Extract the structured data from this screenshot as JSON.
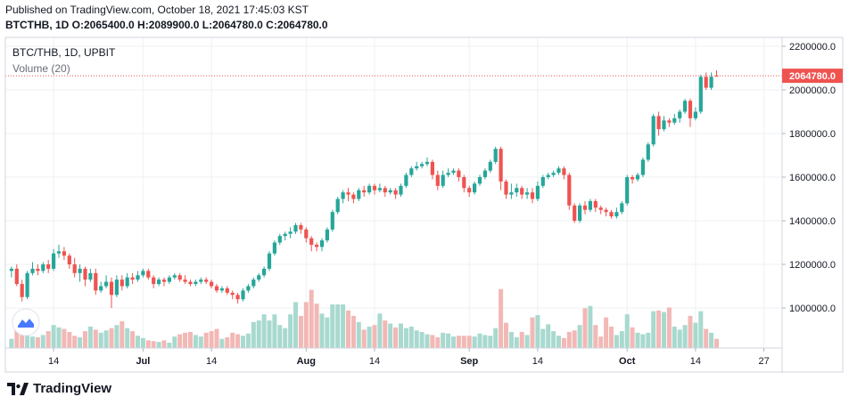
{
  "header": {
    "published": "Published on TradingView.com, October 18, 2021 17:45:03 KST",
    "ohlc": "BTCTHB, 1D O:2065400.0 H:2089900.0 L:2064780.0 C:2064780.0"
  },
  "legend": {
    "symbol": "BTC/THB, 1D, UPBIT",
    "volume": "Volume (20)"
  },
  "footer": {
    "brand": "TradingView"
  },
  "colors": {
    "up": "#26a69a",
    "down": "#ef5350",
    "up_vol": "#a8d9cf",
    "down_vol": "#f2b8b5",
    "last_price": "#ef5350",
    "grid": "#eef0f3"
  },
  "chart_data": {
    "type": "candlestick",
    "title": "BTC/THB, 1D, UPBIT",
    "last_price": 2064780.0,
    "last_price_label": "2064780.0",
    "y_range": [
      840000,
      2230000
    ],
    "y_ticks": [
      {
        "value": 1000000,
        "label": "1000000.0"
      },
      {
        "value": 1200000,
        "label": "1200000.0"
      },
      {
        "value": 1400000,
        "label": "1400000.0"
      },
      {
        "value": 1600000,
        "label": "1600000.0"
      },
      {
        "value": 1800000,
        "label": "1800000.0"
      },
      {
        "value": 2000000,
        "label": "2000000.0"
      },
      {
        "value": 2200000,
        "label": "2200000.0"
      }
    ],
    "x_ticks": [
      {
        "index": 9,
        "label": "14",
        "bold": false
      },
      {
        "index": 26,
        "label": "Jul",
        "bold": true
      },
      {
        "index": 39,
        "label": "14",
        "bold": false
      },
      {
        "index": 57,
        "label": "Aug",
        "bold": true
      },
      {
        "index": 70,
        "label": "14",
        "bold": false
      },
      {
        "index": 88,
        "label": "Sep",
        "bold": true
      },
      {
        "index": 101,
        "label": "14",
        "bold": false
      },
      {
        "index": 118,
        "label": "Oct",
        "bold": true
      },
      {
        "index": 131,
        "label": "14",
        "bold": false
      },
      {
        "index": 144,
        "label": "27",
        "bold": false
      }
    ],
    "first_index": 1,
    "candles": [
      [
        1170000,
        1180000,
        1140000,
        1190000
      ],
      [
        1180000,
        1110000,
        1100000,
        1200000
      ],
      [
        1110000,
        1050000,
        1030000,
        1130000
      ],
      [
        1050000,
        1160000,
        1040000,
        1170000
      ],
      [
        1160000,
        1180000,
        1150000,
        1210000
      ],
      [
        1180000,
        1170000,
        1150000,
        1200000
      ],
      [
        1170000,
        1200000,
        1160000,
        1210000
      ],
      [
        1200000,
        1180000,
        1160000,
        1220000
      ],
      [
        1180000,
        1250000,
        1170000,
        1270000
      ],
      [
        1250000,
        1260000,
        1230000,
        1290000
      ],
      [
        1260000,
        1240000,
        1220000,
        1280000
      ],
      [
        1240000,
        1200000,
        1180000,
        1250000
      ],
      [
        1200000,
        1160000,
        1140000,
        1230000
      ],
      [
        1160000,
        1180000,
        1120000,
        1200000
      ],
      [
        1180000,
        1130000,
        1100000,
        1190000
      ],
      [
        1130000,
        1160000,
        1120000,
        1180000
      ],
      [
        1160000,
        1080000,
        1060000,
        1180000
      ],
      [
        1080000,
        1100000,
        1070000,
        1120000
      ],
      [
        1100000,
        1120000,
        1090000,
        1150000
      ],
      [
        1120000,
        1060000,
        1000000,
        1140000
      ],
      [
        1060000,
        1130000,
        1050000,
        1150000
      ],
      [
        1130000,
        1100000,
        1080000,
        1150000
      ],
      [
        1100000,
        1140000,
        1090000,
        1160000
      ],
      [
        1140000,
        1130000,
        1110000,
        1160000
      ],
      [
        1130000,
        1150000,
        1120000,
        1170000
      ],
      [
        1150000,
        1170000,
        1140000,
        1180000
      ],
      [
        1170000,
        1140000,
        1130000,
        1180000
      ],
      [
        1140000,
        1110000,
        1090000,
        1150000
      ],
      [
        1110000,
        1130000,
        1100000,
        1140000
      ],
      [
        1130000,
        1120000,
        1100000,
        1140000
      ],
      [
        1120000,
        1140000,
        1110000,
        1150000
      ],
      [
        1140000,
        1150000,
        1130000,
        1160000
      ],
      [
        1150000,
        1130000,
        1120000,
        1160000
      ],
      [
        1130000,
        1120000,
        1110000,
        1150000
      ],
      [
        1120000,
        1110000,
        1100000,
        1130000
      ],
      [
        1110000,
        1120000,
        1100000,
        1130000
      ],
      [
        1120000,
        1130000,
        1110000,
        1140000
      ],
      [
        1130000,
        1120000,
        1110000,
        1140000
      ],
      [
        1120000,
        1100000,
        1090000,
        1130000
      ],
      [
        1100000,
        1080000,
        1070000,
        1110000
      ],
      [
        1080000,
        1090000,
        1070000,
        1100000
      ],
      [
        1090000,
        1070000,
        1060000,
        1100000
      ],
      [
        1070000,
        1060000,
        1040000,
        1080000
      ],
      [
        1060000,
        1040000,
        1020000,
        1070000
      ],
      [
        1040000,
        1080000,
        1030000,
        1090000
      ],
      [
        1080000,
        1100000,
        1070000,
        1110000
      ],
      [
        1100000,
        1130000,
        1090000,
        1140000
      ],
      [
        1130000,
        1150000,
        1120000,
        1160000
      ],
      [
        1150000,
        1180000,
        1140000,
        1190000
      ],
      [
        1180000,
        1250000,
        1170000,
        1260000
      ],
      [
        1250000,
        1300000,
        1240000,
        1310000
      ],
      [
        1300000,
        1330000,
        1290000,
        1340000
      ],
      [
        1330000,
        1340000,
        1310000,
        1350000
      ],
      [
        1340000,
        1350000,
        1320000,
        1370000
      ],
      [
        1350000,
        1380000,
        1340000,
        1390000
      ],
      [
        1380000,
        1360000,
        1340000,
        1390000
      ],
      [
        1360000,
        1320000,
        1300000,
        1370000
      ],
      [
        1320000,
        1290000,
        1260000,
        1330000
      ],
      [
        1290000,
        1280000,
        1260000,
        1300000
      ],
      [
        1280000,
        1310000,
        1260000,
        1320000
      ],
      [
        1310000,
        1360000,
        1300000,
        1370000
      ],
      [
        1360000,
        1440000,
        1350000,
        1450000
      ],
      [
        1440000,
        1500000,
        1430000,
        1510000
      ],
      [
        1500000,
        1530000,
        1480000,
        1540000
      ],
      [
        1530000,
        1520000,
        1490000,
        1550000
      ],
      [
        1520000,
        1500000,
        1480000,
        1530000
      ],
      [
        1500000,
        1540000,
        1490000,
        1550000
      ],
      [
        1540000,
        1530000,
        1510000,
        1560000
      ],
      [
        1530000,
        1560000,
        1520000,
        1570000
      ],
      [
        1560000,
        1540000,
        1520000,
        1570000
      ],
      [
        1540000,
        1550000,
        1530000,
        1570000
      ],
      [
        1550000,
        1530000,
        1510000,
        1560000
      ],
      [
        1530000,
        1540000,
        1520000,
        1550000
      ],
      [
        1540000,
        1520000,
        1500000,
        1550000
      ],
      [
        1520000,
        1560000,
        1510000,
        1570000
      ],
      [
        1560000,
        1610000,
        1550000,
        1620000
      ],
      [
        1610000,
        1640000,
        1600000,
        1650000
      ],
      [
        1640000,
        1650000,
        1630000,
        1670000
      ],
      [
        1650000,
        1660000,
        1640000,
        1670000
      ],
      [
        1660000,
        1670000,
        1650000,
        1690000
      ],
      [
        1670000,
        1610000,
        1590000,
        1680000
      ],
      [
        1610000,
        1560000,
        1540000,
        1630000
      ],
      [
        1560000,
        1610000,
        1550000,
        1630000
      ],
      [
        1610000,
        1620000,
        1600000,
        1640000
      ],
      [
        1620000,
        1630000,
        1610000,
        1640000
      ],
      [
        1630000,
        1600000,
        1580000,
        1640000
      ],
      [
        1600000,
        1550000,
        1530000,
        1610000
      ],
      [
        1550000,
        1530000,
        1510000,
        1560000
      ],
      [
        1530000,
        1570000,
        1520000,
        1580000
      ],
      [
        1570000,
        1600000,
        1560000,
        1610000
      ],
      [
        1600000,
        1630000,
        1590000,
        1640000
      ],
      [
        1630000,
        1670000,
        1620000,
        1680000
      ],
      [
        1670000,
        1730000,
        1660000,
        1740000
      ],
      [
        1730000,
        1580000,
        1540000,
        1740000
      ],
      [
        1580000,
        1520000,
        1500000,
        1590000
      ],
      [
        1520000,
        1530000,
        1500000,
        1570000
      ],
      [
        1530000,
        1550000,
        1510000,
        1570000
      ],
      [
        1550000,
        1520000,
        1500000,
        1560000
      ],
      [
        1520000,
        1530000,
        1500000,
        1550000
      ],
      [
        1530000,
        1500000,
        1480000,
        1550000
      ],
      [
        1500000,
        1560000,
        1490000,
        1580000
      ],
      [
        1560000,
        1600000,
        1550000,
        1610000
      ],
      [
        1600000,
        1610000,
        1590000,
        1620000
      ],
      [
        1610000,
        1620000,
        1600000,
        1630000
      ],
      [
        1620000,
        1640000,
        1610000,
        1650000
      ],
      [
        1640000,
        1610000,
        1590000,
        1650000
      ],
      [
        1610000,
        1470000,
        1450000,
        1620000
      ],
      [
        1470000,
        1400000,
        1390000,
        1480000
      ],
      [
        1400000,
        1470000,
        1390000,
        1480000
      ],
      [
        1470000,
        1450000,
        1430000,
        1490000
      ],
      [
        1450000,
        1490000,
        1440000,
        1500000
      ],
      [
        1490000,
        1460000,
        1440000,
        1500000
      ],
      [
        1460000,
        1450000,
        1430000,
        1470000
      ],
      [
        1450000,
        1440000,
        1420000,
        1460000
      ],
      [
        1440000,
        1420000,
        1410000,
        1450000
      ],
      [
        1420000,
        1440000,
        1410000,
        1460000
      ],
      [
        1440000,
        1480000,
        1430000,
        1490000
      ],
      [
        1480000,
        1600000,
        1470000,
        1610000
      ],
      [
        1600000,
        1590000,
        1570000,
        1610000
      ],
      [
        1590000,
        1610000,
        1580000,
        1620000
      ],
      [
        1610000,
        1680000,
        1600000,
        1690000
      ],
      [
        1680000,
        1750000,
        1670000,
        1760000
      ],
      [
        1750000,
        1880000,
        1740000,
        1890000
      ],
      [
        1880000,
        1820000,
        1790000,
        1900000
      ],
      [
        1820000,
        1860000,
        1810000,
        1880000
      ],
      [
        1860000,
        1850000,
        1830000,
        1870000
      ],
      [
        1850000,
        1870000,
        1840000,
        1890000
      ],
      [
        1870000,
        1900000,
        1850000,
        1910000
      ],
      [
        1900000,
        1950000,
        1890000,
        1960000
      ],
      [
        1950000,
        1870000,
        1830000,
        1960000
      ],
      [
        1870000,
        1900000,
        1860000,
        1920000
      ],
      [
        1900000,
        2060000,
        1890000,
        2070000
      ],
      [
        2060000,
        2010000,
        2000000,
        2080000
      ],
      [
        2010000,
        2060000,
        2000000,
        2080000
      ],
      [
        2065400,
        2064780,
        2064780,
        2089900
      ]
    ],
    "volumes": [
      0.12,
      0.32,
      0.2,
      0.18,
      0.15,
      0.14,
      0.17,
      0.22,
      0.3,
      0.27,
      0.25,
      0.21,
      0.16,
      0.14,
      0.22,
      0.28,
      0.24,
      0.2,
      0.23,
      0.26,
      0.3,
      0.35,
      0.26,
      0.22,
      0.16,
      0.13,
      0.1,
      0.09,
      0.08,
      0.1,
      0.07,
      0.15,
      0.18,
      0.2,
      0.21,
      0.17,
      0.15,
      0.2,
      0.22,
      0.25,
      0.12,
      0.14,
      0.2,
      0.18,
      0.16,
      0.19,
      0.34,
      0.36,
      0.44,
      0.36,
      0.44,
      0.3,
      0.26,
      0.44,
      0.6,
      0.42,
      0.6,
      0.76,
      0.58,
      0.45,
      0.4,
      0.57,
      0.57,
      0.57,
      0.49,
      0.42,
      0.34,
      0.24,
      0.28,
      0.3,
      0.45,
      0.36,
      0.32,
      0.27,
      0.32,
      0.26,
      0.28,
      0.23,
      0.21,
      0.18,
      0.17,
      0.14,
      0.2,
      0.19,
      0.15,
      0.16,
      0.16,
      0.16,
      0.15,
      0.19,
      0.17,
      0.16,
      0.26,
      0.77,
      0.33,
      0.21,
      0.14,
      0.21,
      0.17,
      0.4,
      0.43,
      0.25,
      0.31,
      0.22,
      0.16,
      0.13,
      0.21,
      0.23,
      0.3,
      0.52,
      0.55,
      0.3,
      0.15,
      0.4,
      0.28,
      0.17,
      0.22,
      0.44,
      0.27,
      0.2,
      0.18,
      0.2,
      0.48,
      0.49,
      0.47,
      0.53,
      0.28,
      0.24,
      0.3,
      0.42,
      0.33,
      0.48,
      0.25,
      0.2,
      0.12
    ]
  }
}
